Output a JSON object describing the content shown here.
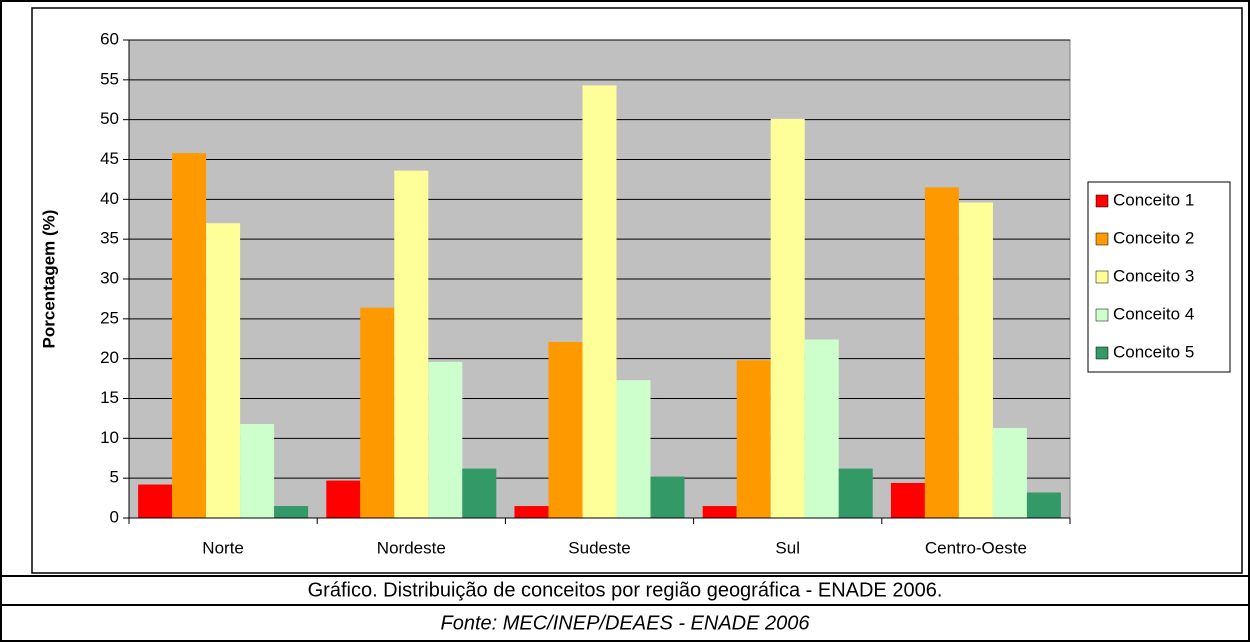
{
  "chart_data": {
    "type": "bar",
    "y_label": "Porcentagem (%)",
    "caption": "Gráfico. Distribuição de conceitos por região geográfica - ENADE 2006.",
    "source": "Fonte: MEC/INEP/DEAES - ENADE 2006",
    "categories": [
      "Norte",
      "Nordeste",
      "Sudeste",
      "Sul",
      "Centro-Oeste"
    ],
    "series": [
      {
        "name": "Conceito 1",
        "color": "#ff0000",
        "values": [
          4.2,
          4.7,
          1.5,
          1.5,
          4.4
        ]
      },
      {
        "name": "Conceito 2",
        "color": "#ff9900",
        "values": [
          45.8,
          26.4,
          22.1,
          19.8,
          41.5
        ]
      },
      {
        "name": "Conceito 3",
        "color": "#ffff99",
        "values": [
          37,
          43.6,
          54.3,
          50.1,
          39.6
        ]
      },
      {
        "name": "Conceito 4",
        "color": "#ccffcc",
        "values": [
          11.8,
          19.6,
          17.3,
          22.4,
          11.3
        ]
      },
      {
        "name": "Conceito 5",
        "color": "#339966",
        "values": [
          1.5,
          6.2,
          5.2,
          6.2,
          3.2
        ]
      }
    ],
    "ylim": [
      0,
      60
    ],
    "yticks": [
      0,
      5,
      10,
      15,
      20,
      25,
      30,
      35,
      40,
      45,
      50,
      55,
      60
    ],
    "grid": true,
    "legend": "right",
    "plot_background": "#c0c0c0"
  }
}
